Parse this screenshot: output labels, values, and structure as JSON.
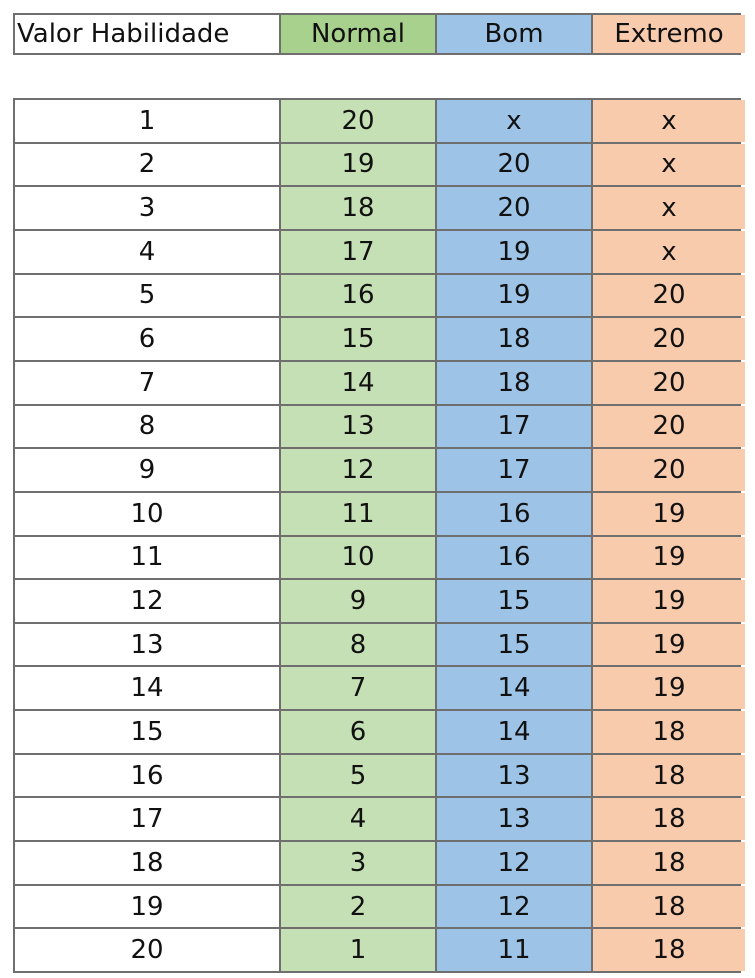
{
  "colors": {
    "c0_head": "#ffffff",
    "c1_head": "#a9d18e",
    "c2_head": "#9dc3e6",
    "c3_head": "#f8cbad",
    "c1_body": "#c5e0b4",
    "c2_body": "#9dc3e6",
    "c3_body": "#f8cbad"
  },
  "header": {
    "col0": "Valor Habilidade",
    "col1": "Normal",
    "col2": "Bom",
    "col3": "Extremo"
  },
  "rows": [
    [
      "1",
      "20",
      "x",
      "x"
    ],
    [
      "2",
      "19",
      "20",
      "x"
    ],
    [
      "3",
      "18",
      "20",
      "x"
    ],
    [
      "4",
      "17",
      "19",
      "x"
    ],
    [
      "5",
      "16",
      "19",
      "20"
    ],
    [
      "6",
      "15",
      "18",
      "20"
    ],
    [
      "7",
      "14",
      "18",
      "20"
    ],
    [
      "8",
      "13",
      "17",
      "20"
    ],
    [
      "9",
      "12",
      "17",
      "20"
    ],
    [
      "10",
      "11",
      "16",
      "19"
    ],
    [
      "11",
      "10",
      "16",
      "19"
    ],
    [
      "12",
      "9",
      "15",
      "19"
    ],
    [
      "13",
      "8",
      "15",
      "19"
    ],
    [
      "14",
      "7",
      "14",
      "19"
    ],
    [
      "15",
      "6",
      "14",
      "18"
    ],
    [
      "16",
      "5",
      "13",
      "18"
    ],
    [
      "17",
      "4",
      "13",
      "18"
    ],
    [
      "18",
      "3",
      "12",
      "18"
    ],
    [
      "19",
      "2",
      "12",
      "18"
    ],
    [
      "20",
      "1",
      "11",
      "18"
    ]
  ]
}
